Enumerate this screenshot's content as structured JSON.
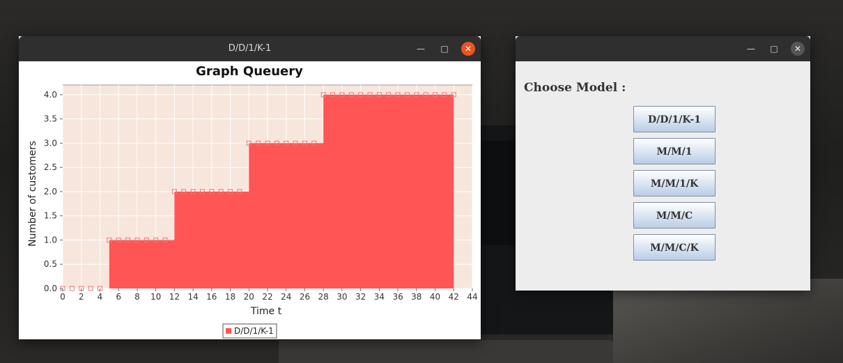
{
  "window_main": {
    "title": "D/D/1/K-1",
    "minimize_icon": "minimize-icon",
    "maximize_icon": "maximize-icon",
    "close_icon": "close-icon"
  },
  "window_chooser": {
    "title": "",
    "heading": "Choose Model :",
    "buttons": [
      "D/D/1/K-1",
      "M/M/1",
      "M/M/1/K",
      "M/M/C",
      "M/M/C/K"
    ]
  },
  "chart_data": {
    "type": "area",
    "title": "Graph Queuery",
    "xlabel": "Time t",
    "ylabel": "Number of customers",
    "xlim": [
      0,
      44
    ],
    "ylim": [
      0,
      4.2
    ],
    "xticks": [
      0,
      2,
      4,
      6,
      8,
      10,
      12,
      14,
      16,
      18,
      20,
      22,
      24,
      26,
      28,
      30,
      32,
      34,
      36,
      38,
      40,
      42,
      44
    ],
    "yticks": [
      0.0,
      0.5,
      1.0,
      1.5,
      2.0,
      2.5,
      3.0,
      3.5,
      4.0
    ],
    "series": [
      {
        "name": "D/D/1/K-1",
        "color": "#ff5555",
        "x": [
          0,
          1,
          2,
          3,
          4,
          5,
          6,
          7,
          8,
          9,
          10,
          11,
          12,
          13,
          14,
          15,
          16,
          17,
          18,
          19,
          20,
          21,
          22,
          23,
          24,
          25,
          26,
          27,
          28,
          29,
          30,
          31,
          32,
          33,
          34,
          35,
          36,
          37,
          38,
          39,
          40,
          41,
          42
        ],
        "y": [
          0,
          0,
          0,
          0,
          0,
          1,
          1,
          1,
          1,
          1,
          1,
          1,
          2,
          2,
          2,
          2,
          2,
          2,
          2,
          2,
          3,
          3,
          3,
          3,
          3,
          3,
          3,
          3,
          4,
          4,
          4,
          4,
          4,
          4,
          4,
          4,
          4,
          4,
          4,
          4,
          4,
          4,
          4
        ]
      }
    ],
    "legend": "bottom-center",
    "plot_background": "#f7e6dc"
  }
}
